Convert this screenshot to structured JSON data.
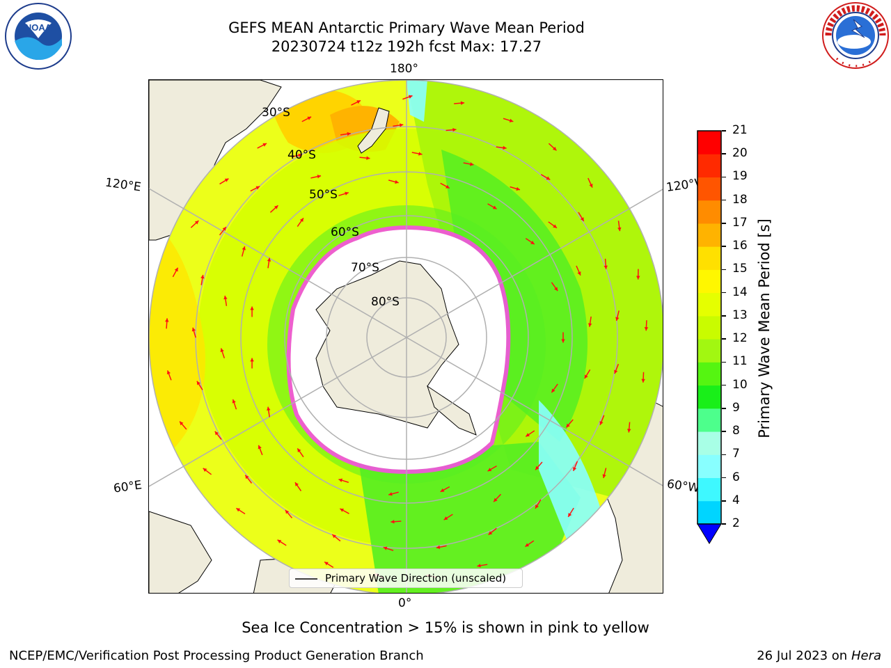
{
  "title": {
    "line1": "GEFS MEAN Antarctic Primary Wave Mean Period",
    "line2": "20230724 t12z 192h fcst   Max: 17.27"
  },
  "logos": {
    "noaa": {
      "text": "NOAA",
      "ring_text": "NATIONAL OCEANIC AND ATMOSPHERIC ADMINISTRATION · U.S. DEPARTMENT OF COMMERCE"
    },
    "nws": {
      "ring_text": "NATIONAL WEATHER SERVICE"
    }
  },
  "map": {
    "projection": "south polar stereographic",
    "longitude_labels": {
      "top": "180°",
      "bottom": "0°",
      "upper_left": "120°E",
      "upper_right": "120°W",
      "lower_left": "60°E",
      "lower_right": "60°W"
    },
    "latitude_labels": [
      "30°S",
      "40°S",
      "50°S",
      "60°S",
      "70°S",
      "80°S"
    ],
    "legend_label": "Primary Wave Direction (unscaled)"
  },
  "colorbar": {
    "label": "Primary Wave Mean Period [s]",
    "ticks": [
      "2",
      "4",
      "6",
      "7",
      "8",
      "9",
      "10",
      "11",
      "12",
      "13",
      "14",
      "15",
      "16",
      "17",
      "18",
      "19",
      "20",
      "21"
    ],
    "colors": [
      "#0063ff",
      "#00d5ff",
      "#3ef8ff",
      "#88ffff",
      "#a8ffe6",
      "#4dff8c",
      "#19ef19",
      "#55f511",
      "#a2f711",
      "#c9fc00",
      "#e5ff00",
      "#fff700",
      "#ffe000",
      "#ffb300",
      "#ff8c00",
      "#ff5500",
      "#ff2a00",
      "#ff0000"
    ],
    "extend_color": "#0000ff"
  },
  "annotation": "Sea Ice Concentration > 15% is shown in pink to yellow",
  "footer": {
    "left": "NCEP/EMC/Verification Post Processing Product Generation Branch",
    "right_date": "26 Jul 2023 on ",
    "right_host": "Hera"
  },
  "colors": {
    "land": "#efecdc",
    "ocean_warm": "#e9ff1c",
    "ocean_mid": "#b8fc00",
    "ocean_cool": "#55ee22",
    "sea_ice_edge": "#ff44ee",
    "arrow": "#ff1111",
    "grid": "#b0b0b0"
  }
}
